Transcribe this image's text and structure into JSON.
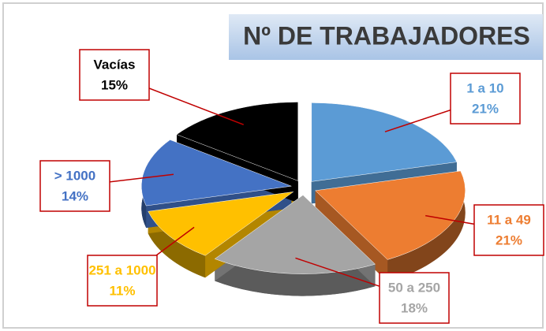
{
  "chart_data": {
    "type": "pie",
    "title": "Nº DE TRABAJADORES",
    "categories": [
      "1 a 10",
      "11 a 49",
      "50 a 250",
      "251 a 1000",
      "> 1000",
      "Vacías"
    ],
    "values": [
      21,
      21,
      18,
      11,
      14,
      15
    ],
    "value_labels": [
      "21%",
      "21%",
      "18%",
      "11%",
      "14%",
      "15%"
    ],
    "colors": [
      "#5b9bd5",
      "#ed7d31",
      "#a5a5a5",
      "#ffc000",
      "#4472c4",
      "#000000"
    ]
  }
}
